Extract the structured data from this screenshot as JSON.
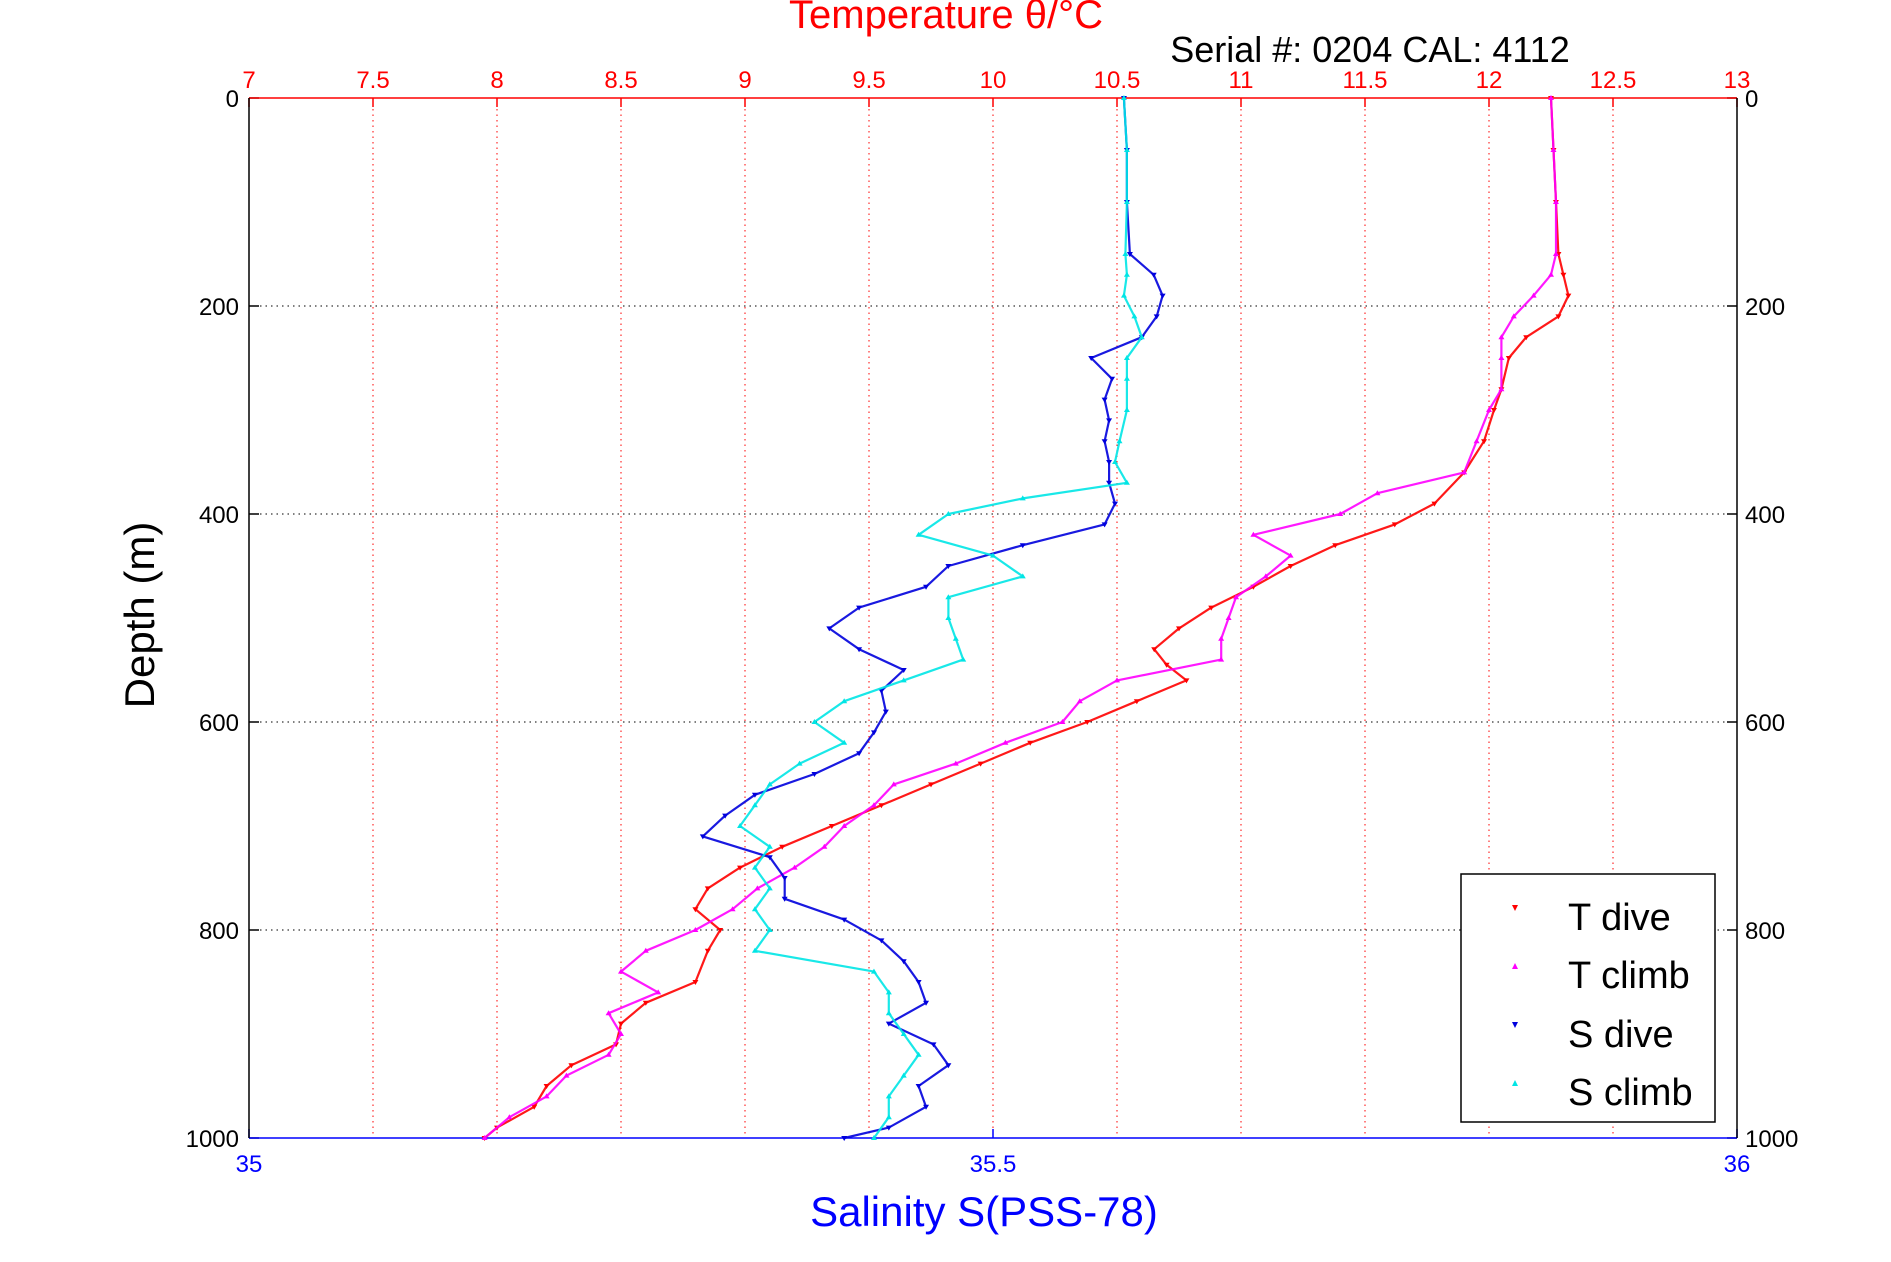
{
  "colors": {
    "temperature_axis": "#ff0000",
    "salinity_axis": "#0000ff",
    "depth_grid": "#000000",
    "t_dive": "#ff0000",
    "t_climb": "#ff00ff",
    "s_dive": "#0000dd",
    "s_climb": "#00e5e5"
  },
  "chart_data": {
    "type": "scatter",
    "title": "Temperature θ/°C",
    "subtitle": "Serial #: 0204  CAL: 4112",
    "ylabel": "Depth (m)",
    "xlabel": "Salinity S(PSS-78)",
    "x_top": {
      "label": "Temperature θ/°C",
      "lim": [
        7,
        13
      ],
      "ticks": [
        7,
        7.5,
        8,
        8.5,
        9,
        9.5,
        10,
        10.5,
        11,
        11.5,
        12,
        12.5,
        13
      ],
      "tick_labels": [
        "7",
        "7.5",
        "8",
        "8.5",
        "9",
        "9.5",
        "10",
        "10.5",
        "11",
        "11.5",
        "12",
        "12.5",
        "13"
      ]
    },
    "x_bottom": {
      "label": "Salinity S(PSS-78)",
      "lim": [
        35,
        36
      ],
      "ticks": [
        35,
        35.5,
        36
      ],
      "tick_labels": [
        "35",
        "35.5",
        "36"
      ]
    },
    "y": {
      "lim": [
        0,
        1000
      ],
      "reversed": true,
      "ticks": [
        0,
        200,
        400,
        600,
        800,
        1000
      ],
      "tick_labels": [
        "0",
        "200",
        "400",
        "600",
        "800",
        "1000"
      ]
    },
    "grid": true,
    "legend_position": "bottom-right",
    "series": [
      {
        "name": "T dive",
        "axis": "temperature",
        "marker": "triangle-down",
        "depth": [
          0,
          50,
          100,
          150,
          170,
          190,
          210,
          230,
          250,
          280,
          300,
          330,
          360,
          390,
          410,
          430,
          450,
          470,
          490,
          510,
          530,
          545,
          560,
          580,
          600,
          620,
          640,
          660,
          680,
          700,
          720,
          740,
          760,
          780,
          800,
          820,
          850,
          870,
          890,
          910,
          930,
          950,
          970,
          990,
          1000
        ],
        "temperature": [
          12.25,
          12.26,
          12.27,
          12.28,
          12.3,
          12.32,
          12.28,
          12.15,
          12.08,
          12.05,
          12.02,
          11.98,
          11.9,
          11.78,
          11.62,
          11.38,
          11.2,
          11.05,
          10.88,
          10.75,
          10.65,
          10.7,
          10.78,
          10.58,
          10.38,
          10.15,
          9.95,
          9.75,
          9.55,
          9.35,
          9.15,
          8.98,
          8.85,
          8.8,
          8.9,
          8.85,
          8.8,
          8.6,
          8.5,
          8.48,
          8.3,
          8.2,
          8.15,
          8.0,
          7.95
        ]
      },
      {
        "name": "T climb",
        "axis": "temperature",
        "marker": "triangle-up",
        "depth": [
          0,
          50,
          100,
          150,
          170,
          190,
          210,
          230,
          250,
          280,
          300,
          330,
          360,
          380,
          400,
          420,
          440,
          460,
          480,
          500,
          520,
          540,
          560,
          580,
          600,
          620,
          640,
          660,
          680,
          700,
          720,
          740,
          760,
          780,
          800,
          820,
          840,
          860,
          880,
          900,
          920,
          940,
          960,
          980,
          1000
        ],
        "temperature": [
          12.25,
          12.26,
          12.27,
          12.27,
          12.25,
          12.18,
          12.1,
          12.05,
          12.05,
          12.05,
          12.0,
          11.95,
          11.9,
          11.55,
          11.4,
          11.05,
          11.2,
          11.1,
          10.98,
          10.95,
          10.92,
          10.92,
          10.5,
          10.35,
          10.28,
          10.05,
          9.85,
          9.6,
          9.52,
          9.4,
          9.32,
          9.2,
          9.05,
          8.95,
          8.8,
          8.6,
          8.5,
          8.65,
          8.45,
          8.5,
          8.45,
          8.28,
          8.2,
          8.05,
          7.95
        ]
      },
      {
        "name": "S dive",
        "axis": "salinity",
        "marker": "triangle-down",
        "depth": [
          0,
          50,
          100,
          150,
          170,
          190,
          210,
          230,
          250,
          270,
          290,
          310,
          330,
          350,
          370,
          390,
          410,
          430,
          450,
          470,
          490,
          510,
          530,
          550,
          570,
          590,
          610,
          630,
          650,
          670,
          690,
          710,
          730,
          750,
          770,
          790,
          810,
          830,
          850,
          870,
          890,
          910,
          930,
          950,
          970,
          990,
          1000
        ],
        "salinity": [
          35.588,
          35.59,
          35.59,
          35.592,
          35.608,
          35.614,
          35.61,
          35.6,
          35.566,
          35.58,
          35.575,
          35.578,
          35.575,
          35.578,
          35.578,
          35.582,
          35.575,
          35.52,
          35.47,
          35.455,
          35.41,
          35.39,
          35.41,
          35.44,
          35.425,
          35.428,
          35.42,
          35.41,
          35.38,
          35.34,
          35.32,
          35.305,
          35.35,
          35.36,
          35.36,
          35.4,
          35.425,
          35.44,
          35.45,
          35.455,
          35.43,
          35.46,
          35.47,
          35.45,
          35.455,
          35.43,
          35.4
        ]
      },
      {
        "name": "S climb",
        "axis": "salinity",
        "marker": "triangle-up",
        "depth": [
          0,
          50,
          100,
          150,
          170,
          190,
          210,
          230,
          250,
          270,
          300,
          330,
          350,
          370,
          385,
          400,
          420,
          440,
          460,
          480,
          500,
          520,
          540,
          560,
          580,
          600,
          620,
          640,
          660,
          680,
          700,
          720,
          740,
          760,
          780,
          800,
          820,
          840,
          860,
          880,
          900,
          920,
          940,
          960,
          980,
          1000
        ],
        "salinity": [
          35.588,
          35.59,
          35.59,
          35.589,
          35.59,
          35.588,
          35.595,
          35.6,
          35.59,
          35.59,
          35.59,
          35.585,
          35.582,
          35.59,
          35.52,
          35.47,
          35.45,
          35.5,
          35.52,
          35.47,
          35.47,
          35.475,
          35.48,
          35.44,
          35.4,
          35.38,
          35.4,
          35.37,
          35.35,
          35.34,
          35.33,
          35.35,
          35.34,
          35.35,
          35.34,
          35.35,
          35.34,
          35.42,
          35.43,
          35.43,
          35.44,
          35.45,
          35.44,
          35.43,
          35.43,
          35.42
        ]
      }
    ]
  }
}
